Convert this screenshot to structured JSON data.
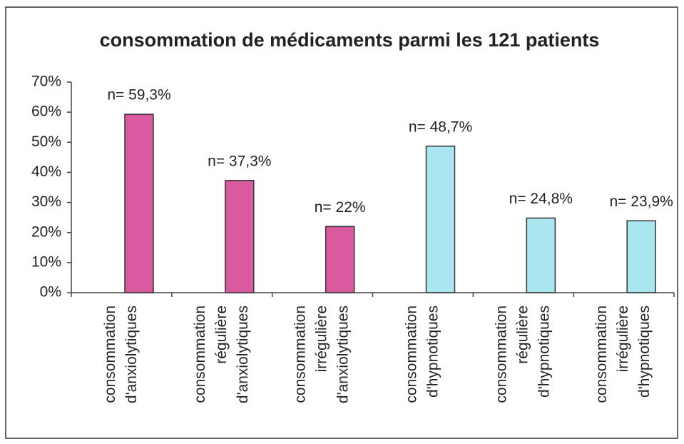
{
  "chart_data": {
    "type": "bar",
    "title": "consommation de médicaments parmi les 121 patients",
    "categories": [
      "consommation\nd'anxiolytiques",
      "consommation\nrégulière\nd'anxiolytiques",
      "consommation\nirrégulière\nd'anxiolytiques",
      "consommation\nd'hypnotiques",
      "consommation\nrégulière\nd'hypnotiques",
      "consommation\nirrégulière\nd'hypnotiques"
    ],
    "values": [
      59.3,
      37.3,
      22,
      48.7,
      24.8,
      23.9
    ],
    "value_labels": [
      "n= 59,3%",
      "n= 37,3%",
      "n= 22%",
      "n= 48,7%",
      "n= 24,8%",
      "n= 23,9%"
    ],
    "colors": [
      "#d95a9e",
      "#d95a9e",
      "#d95a9e",
      "#a9e6f0",
      "#a9e6f0",
      "#a9e6f0"
    ],
    "ylim": [
      0,
      70
    ],
    "yticks": [
      {
        "value": 0,
        "label": "0%"
      },
      {
        "value": 10,
        "label": "10%"
      },
      {
        "value": 20,
        "label": "20%"
      },
      {
        "value": 30,
        "label": "30%"
      },
      {
        "value": 40,
        "label": "40%"
      },
      {
        "value": 50,
        "label": "50%"
      },
      {
        "value": 60,
        "label": "60%"
      },
      {
        "value": 70,
        "label": "70%"
      }
    ],
    "grid": false
  }
}
